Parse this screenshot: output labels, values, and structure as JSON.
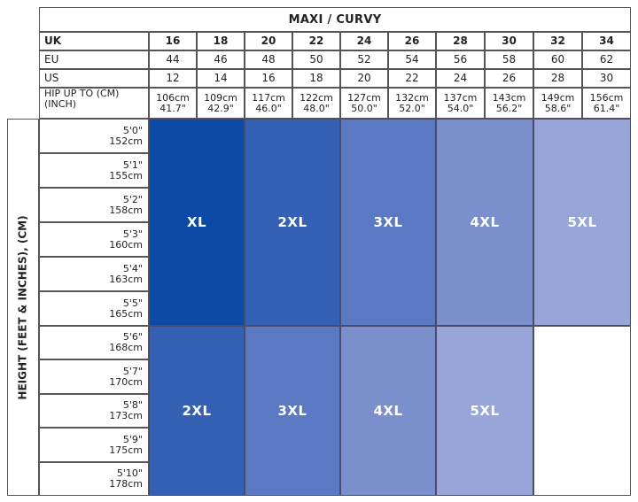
{
  "table": {
    "title": "MAXI / CURVY",
    "rows": {
      "uk": {
        "label": "UK",
        "values": [
          "16",
          "18",
          "20",
          "22",
          "24",
          "26",
          "28",
          "30",
          "32",
          "34"
        ]
      },
      "eu": {
        "label": "EU",
        "values": [
          "44",
          "46",
          "48",
          "50",
          "52",
          "54",
          "56",
          "58",
          "60",
          "62"
        ]
      },
      "us": {
        "label": "US",
        "values": [
          "12",
          "14",
          "16",
          "18",
          "20",
          "22",
          "24",
          "26",
          "28",
          "30"
        ]
      },
      "hip": {
        "label_line1": "HIP UP TO (CM)",
        "label_line2": "(INCH)",
        "cm": [
          "106cm",
          "109cm",
          "117cm",
          "122cm",
          "127cm",
          "132cm",
          "137cm",
          "143cm",
          "149cm",
          "156cm"
        ],
        "inch": [
          "41.7\"",
          "42.9\"",
          "46.0\"",
          "48.0\"",
          "50.0\"",
          "52.0\"",
          "54.0\"",
          "56.2\"",
          "58.6\"",
          "61.4\""
        ]
      }
    },
    "height_axis_label": "HEIGHT (FEET & INCHES), (CM)",
    "heights": [
      {
        "ft": "5'0\"",
        "cm": "152cm"
      },
      {
        "ft": "5'1\"",
        "cm": "155cm"
      },
      {
        "ft": "5'2\"",
        "cm": "158cm"
      },
      {
        "ft": "5'3\"",
        "cm": "160cm"
      },
      {
        "ft": "5'4\"",
        "cm": "163cm"
      },
      {
        "ft": "5'5\"",
        "cm": "165cm"
      },
      {
        "ft": "5'6\"",
        "cm": "168cm"
      },
      {
        "ft": "5'7\"",
        "cm": "170cm"
      },
      {
        "ft": "5'8\"",
        "cm": "173cm"
      },
      {
        "ft": "5'9\"",
        "cm": "175cm"
      },
      {
        "ft": "5'10\"",
        "cm": "178cm"
      }
    ],
    "upper_sizes": [
      "XL",
      "2XL",
      "3XL",
      "4XL",
      "5XL"
    ],
    "lower_sizes": [
      "2XL",
      "3XL",
      "4XL",
      "5XL"
    ],
    "colors": {
      "shade1": "#0b4aa6",
      "shade2": "#3461b3",
      "shade3": "#5a79c2",
      "shade4": "#7b8fcd",
      "shade5": "#98a5d8",
      "border": "#555555"
    }
  }
}
